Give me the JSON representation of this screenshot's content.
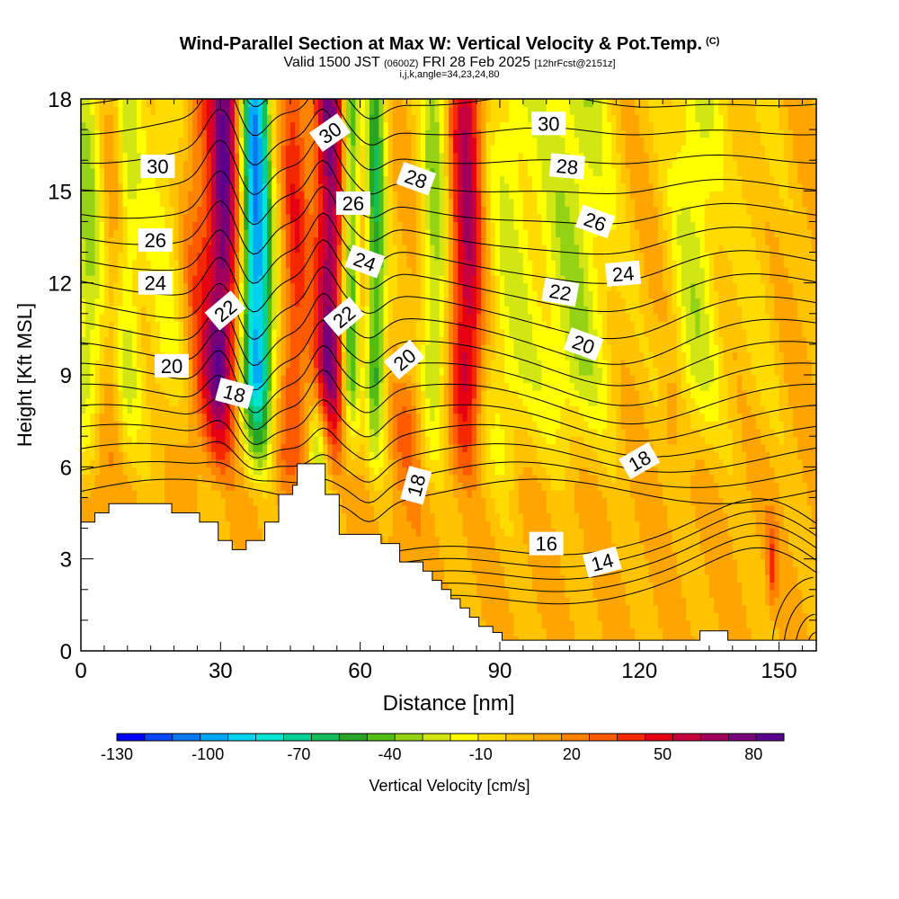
{
  "title": {
    "main": "Wind-Parallel Section at Max W: Vertical Velocity & Pot.Temp.",
    "copyright": "(C)",
    "valid": "Valid 1500 JST",
    "valid_utc": "(0600Z)",
    "date": "FRI 28 Feb 2025",
    "forecast": "[12hrFcst@2151z]",
    "indices": "i,j,k,angle=34,23,24,80"
  },
  "chart_data": {
    "type": "heatmap",
    "xlabel": "Distance [nm]",
    "ylabel": "Height [Kft MSL]",
    "xlim": [
      0,
      158
    ],
    "ylim": [
      0,
      18
    ],
    "x_ticks": [
      0,
      30,
      60,
      90,
      120,
      150
    ],
    "y_ticks": [
      0,
      3,
      6,
      9,
      12,
      15,
      18
    ],
    "colorbar": {
      "label": "Vertical Velocity [cm/s]",
      "tick_labels": [
        "-130",
        "-100",
        "-70",
        "-40",
        "-10",
        "20",
        "50",
        "80"
      ],
      "tick_values": [
        -130,
        -100,
        -70,
        -40,
        -10,
        20,
        50,
        80
      ],
      "range": [
        -130,
        90
      ],
      "colors": [
        "#0000ff",
        "#0a46f5",
        "#0c78ef",
        "#00aaf5",
        "#00d2f0",
        "#00e6d2",
        "#00d296",
        "#14be5a",
        "#28a528",
        "#50be14",
        "#96d214",
        "#d2e614",
        "#ffff00",
        "#ffdc00",
        "#ffc300",
        "#ffa500",
        "#ff8200",
        "#ff5a00",
        "#f52800",
        "#e60014",
        "#c8003c",
        "#a0005a",
        "#780078",
        "#5a008c"
      ]
    },
    "theta_contour_labels": [
      {
        "value": "30",
        "x": 16.5,
        "y": 15.8,
        "angle": 0
      },
      {
        "value": "26",
        "x": 16,
        "y": 13.4,
        "angle": 0
      },
      {
        "value": "24",
        "x": 16,
        "y": 12.0,
        "angle": 0
      },
      {
        "value": "20",
        "x": 19.5,
        "y": 9.3,
        "angle": 0
      },
      {
        "value": "22",
        "x": 31,
        "y": 11.1,
        "angle": -40
      },
      {
        "value": "18",
        "x": 33,
        "y": 8.4,
        "angle": 15
      },
      {
        "value": "30",
        "x": 53.5,
        "y": 16.9,
        "angle": -35
      },
      {
        "value": "26",
        "x": 58.5,
        "y": 14.6,
        "angle": 0
      },
      {
        "value": "24",
        "x": 61,
        "y": 12.7,
        "angle": 20
      },
      {
        "value": "22",
        "x": 56.5,
        "y": 10.9,
        "angle": -40
      },
      {
        "value": "28",
        "x": 72,
        "y": 15.4,
        "angle": 20
      },
      {
        "value": "20",
        "x": 69.5,
        "y": 9.5,
        "angle": -40
      },
      {
        "value": "18",
        "x": 72,
        "y": 5.4,
        "angle": -75
      },
      {
        "value": "30",
        "x": 100.5,
        "y": 17.2,
        "angle": 0
      },
      {
        "value": "28",
        "x": 104.5,
        "y": 15.8,
        "angle": 5
      },
      {
        "value": "26",
        "x": 110.5,
        "y": 14.0,
        "angle": 20
      },
      {
        "value": "24",
        "x": 116.5,
        "y": 12.3,
        "angle": -5
      },
      {
        "value": "22",
        "x": 103,
        "y": 11.7,
        "angle": 10
      },
      {
        "value": "20",
        "x": 108,
        "y": 10.0,
        "angle": 20
      },
      {
        "value": "18",
        "x": 120,
        "y": 6.2,
        "angle": -30
      },
      {
        "value": "16",
        "x": 100,
        "y": 3.5,
        "angle": 0
      },
      {
        "value": "14",
        "x": 112,
        "y": 2.9,
        "angle": -15
      }
    ]
  }
}
